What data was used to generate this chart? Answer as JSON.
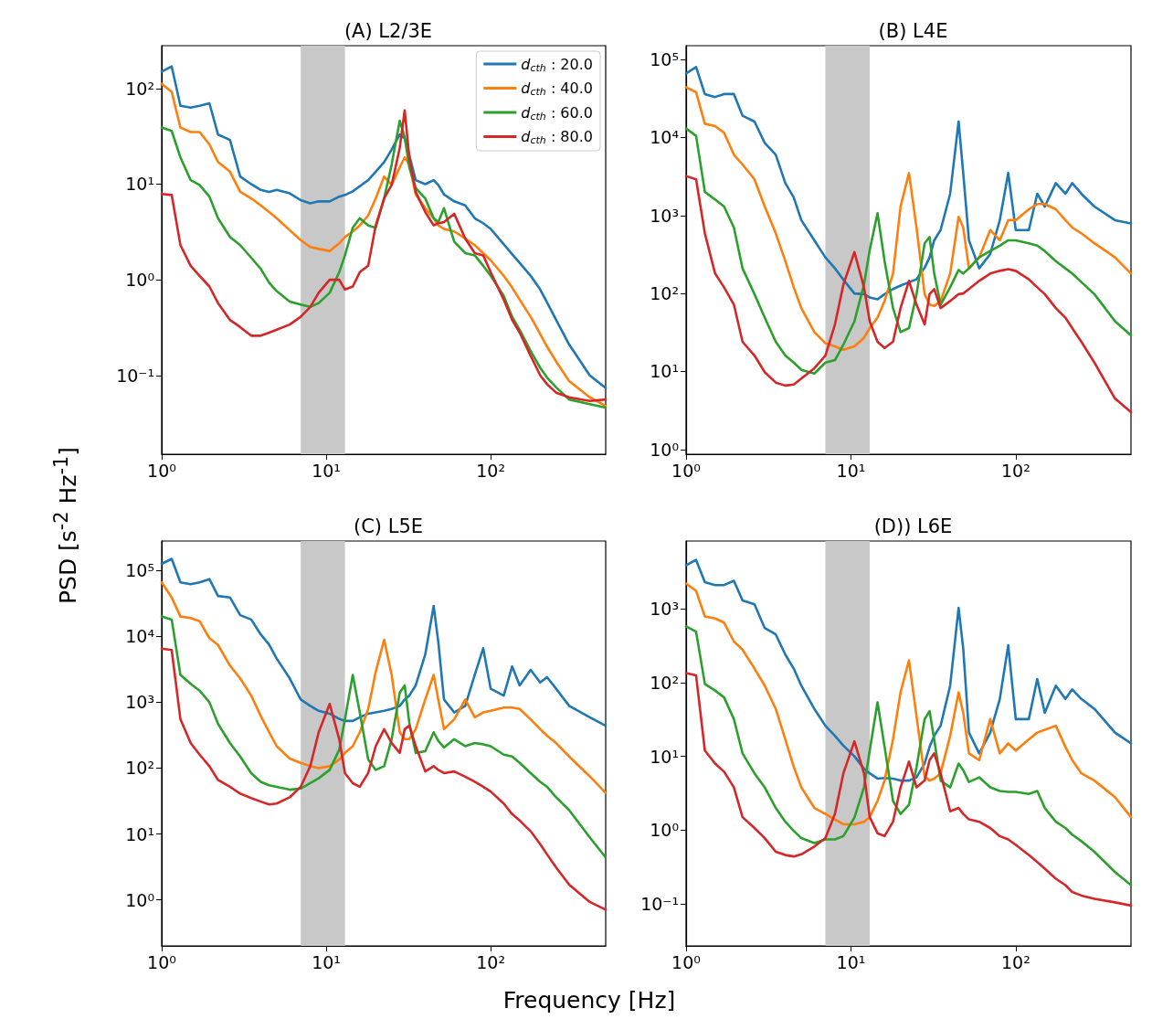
{
  "chart_data": [
    {
      "type": "line",
      "title": "(A) L2/3E",
      "ylabel": "PSD [s$^{-2}$ Hz$^{-1}$]",
      "log": "xy",
      "marker": "none",
      "legend": "top right",
      "x": [
        1,
        1.15,
        1.3,
        1.5,
        1.7,
        1.95,
        2.2,
        2.6,
        3,
        3.5,
        4,
        4.5,
        5,
        6,
        7,
        8,
        9,
        10.5,
        12,
        13,
        14.5,
        16,
        18,
        20,
        22.5,
        25,
        28,
        30,
        32,
        35,
        40,
        45,
        48,
        52,
        60,
        70,
        80,
        90,
        100,
        120,
        135,
        150,
        175,
        200,
        220,
        250,
        300,
        400,
        500
      ],
      "series": [
        {
          "name": "d$_{cth}$ : 20.0",
          "color": "#1f77b4",
          "values": [
            150,
            170,
            66,
            63,
            66,
            70,
            33,
            29,
            12,
            10,
            8.7,
            8.3,
            8.7,
            8,
            6.8,
            6.3,
            6.6,
            6.6,
            7.4,
            7.7,
            8.4,
            9.5,
            11,
            13.5,
            17,
            23,
            33,
            30,
            20,
            11,
            10,
            11,
            9.8,
            7.8,
            6.6,
            6,
            4.4,
            3.9,
            3.4,
            2.35,
            1.85,
            1.5,
            1.1,
            0.79,
            0.58,
            0.38,
            0.21,
            0.1,
            0.074
          ]
        },
        {
          "name": "d$_{cth}$ : 40.0",
          "color": "#ff7f0e",
          "values": [
            112,
            92,
            39,
            35,
            35,
            26,
            17,
            13.5,
            8.3,
            7.1,
            6,
            5.1,
            4.4,
            3.3,
            2.6,
            2.2,
            2.1,
            2.0,
            2.4,
            2.8,
            3.2,
            3.7,
            4.7,
            7.1,
            12,
            9.8,
            15,
            19,
            16,
            7.8,
            5.6,
            4.4,
            3.7,
            3.4,
            3.2,
            2.7,
            2.3,
            1.9,
            1.6,
            1.1,
            0.83,
            0.62,
            0.41,
            0.27,
            0.2,
            0.14,
            0.087,
            0.059,
            0.048
          ]
        },
        {
          "name": "d$_{cth}$ : 60.0",
          "color": "#2ca02c",
          "values": [
            39,
            36,
            19,
            11,
            9.8,
            7.4,
            4.4,
            2.8,
            2.3,
            1.7,
            1.3,
            0.93,
            0.76,
            0.59,
            0.55,
            0.52,
            0.57,
            0.73,
            1.2,
            1.8,
            3.5,
            4.4,
            3.7,
            3.5,
            7.1,
            16,
            46,
            31,
            15,
            9.1,
            7.1,
            4.4,
            4,
            5.6,
            2.5,
            1.9,
            1.8,
            1.4,
            1.1,
            0.68,
            0.41,
            0.3,
            0.18,
            0.12,
            0.095,
            0.075,
            0.056,
            0.05,
            0.046
          ]
        },
        {
          "name": "d$_{cth}$ : 80.0",
          "color": "#d62728",
          "values": [
            7.9,
            7.7,
            2.3,
            1.4,
            1.1,
            0.85,
            0.57,
            0.38,
            0.32,
            0.26,
            0.26,
            0.28,
            0.3,
            0.34,
            0.41,
            0.52,
            0.73,
            1.0,
            1.0,
            0.79,
            0.85,
            1.2,
            1.4,
            3.7,
            7.1,
            9.8,
            24,
            59,
            19,
            8.3,
            5.1,
            3.7,
            3.9,
            4,
            4.9,
            2.7,
            1.9,
            1.8,
            1.2,
            0.62,
            0.38,
            0.28,
            0.16,
            0.1,
            0.081,
            0.066,
            0.059,
            0.054,
            0.056
          ]
        }
      ],
      "xlim": [
        1,
        500
      ],
      "ylim": [
        0.015,
        280
      ],
      "xticks": [
        {
          "value": 1,
          "label": "10⁰"
        },
        {
          "value": 10,
          "label": "10¹"
        },
        {
          "value": 100,
          "label": "10²"
        }
      ],
      "yticks": [
        {
          "value": 0.1,
          "label": "10⁻¹"
        },
        {
          "value": 1,
          "label": "10⁰"
        },
        {
          "value": 10,
          "label": "10¹"
        },
        {
          "value": 100,
          "label": "10²"
        }
      ],
      "bands": [
        {
          "axis": "x",
          "from": 7,
          "to": 13,
          "color": "#c8c8c8"
        }
      ]
    },
    {
      "type": "line",
      "title": "(B) L4E",
      "log": "xy",
      "marker": "none",
      "x": [
        1,
        1.15,
        1.3,
        1.5,
        1.7,
        1.95,
        2.2,
        2.6,
        3,
        3.5,
        4,
        4.5,
        5,
        6,
        7,
        8,
        9,
        10.5,
        12,
        13,
        14.5,
        16,
        18,
        20,
        22.5,
        25,
        28,
        30,
        32,
        35,
        40,
        45,
        48,
        52,
        60,
        70,
        80,
        90,
        100,
        120,
        135,
        150,
        175,
        200,
        220,
        250,
        300,
        400,
        500
      ],
      "series": [
        {
          "color": "#1f77b4",
          "values": [
            66000,
            80000,
            36000,
            33000,
            36000,
            36000,
            19000,
            16000,
            8500,
            6000,
            2600,
            1700,
            870,
            480,
            290,
            210,
            150,
            100,
            98,
            89,
            84,
            98,
            114,
            126,
            139,
            152,
            213,
            290,
            480,
            650,
            1900,
            16000,
            3500,
            480,
            210,
            320,
            870,
            3500,
            650,
            650,
            1900,
            1300,
            2600,
            1900,
            2600,
            1900,
            1300,
            870,
            790
          ]
        },
        {
          "color": "#ff7f0e",
          "values": [
            44000,
            38000,
            15000,
            14000,
            11500,
            6000,
            4500,
            2900,
            1300,
            590,
            260,
            120,
            65,
            32,
            23,
            21,
            19,
            21,
            27,
            36,
            49,
            80,
            180,
            1300,
            3500,
            700,
            98,
            72,
            69,
            80,
            180,
            960,
            700,
            210,
            290,
            650,
            480,
            870,
            870,
            1200,
            1400,
            1400,
            1200,
            870,
            700,
            590,
            440,
            290,
            180
          ]
        },
        {
          "color": "#2ca02c",
          "values": [
            13000,
            10500,
            2000,
            1600,
            1300,
            700,
            210,
            98,
            49,
            24,
            16,
            13,
            10.5,
            9.4,
            13,
            14,
            22,
            44,
            130,
            360,
            1070,
            260,
            65,
            32,
            36,
            98,
            440,
            530,
            180,
            72,
            120,
            200,
            180,
            210,
            290,
            350,
            410,
            480,
            480,
            440,
            410,
            350,
            260,
            210,
            180,
            140,
            98,
            44,
            29
          ]
        },
        {
          "color": "#d62728",
          "values": [
            3200,
            2900,
            590,
            180,
            120,
            72,
            24,
            16,
            9.8,
            7.2,
            6.6,
            6.8,
            8.1,
            11,
            16,
            40,
            130,
            340,
            120,
            44,
            24,
            20,
            24,
            65,
            145,
            72,
            40,
            98,
            114,
            65,
            80,
            98,
            100,
            114,
            145,
            180,
            195,
            205,
            195,
            152,
            120,
            98,
            65,
            49,
            36,
            24,
            13,
            4.5,
            3
          ]
        }
      ],
      "xlim": [
        1,
        500
      ],
      "ylim": [
        0.87,
        150000
      ],
      "xticks": [
        {
          "value": 1,
          "label": "10⁰"
        },
        {
          "value": 10,
          "label": "10¹"
        },
        {
          "value": 100,
          "label": "10²"
        }
      ],
      "yticks": [
        {
          "value": 1,
          "label": "10⁰"
        },
        {
          "value": 10,
          "label": "10¹"
        },
        {
          "value": 100,
          "label": "10²"
        },
        {
          "value": 1000,
          "label": "10³"
        },
        {
          "value": 10000,
          "label": "10⁴"
        },
        {
          "value": 100000,
          "label": "10⁵"
        }
      ],
      "bands": [
        {
          "axis": "x",
          "from": 7,
          "to": 13,
          "color": "#c8c8c8"
        }
      ]
    },
    {
      "type": "line",
      "title": "(C) L5E",
      "xlabel": "Frequency [Hz]",
      "log": "xy",
      "marker": "none",
      "x": [
        1,
        1.15,
        1.3,
        1.5,
        1.7,
        1.95,
        2.2,
        2.6,
        3,
        3.5,
        4,
        4.5,
        5,
        6,
        7,
        8,
        9,
        10.5,
        12,
        13,
        14.5,
        16,
        18,
        20,
        22.5,
        25,
        28,
        30,
        32,
        35,
        40,
        45,
        48,
        52,
        60,
        70,
        80,
        90,
        100,
        120,
        135,
        150,
        175,
        200,
        220,
        250,
        300,
        400,
        500
      ],
      "series": [
        {
          "color": "#1f77b4",
          "values": [
            126000,
            150000,
            66000,
            62000,
            66000,
            74000,
            41000,
            39000,
            21000,
            18000,
            10700,
            7500,
            4600,
            2300,
            1100,
            880,
            740,
            670,
            560,
            520,
            520,
            590,
            670,
            700,
            740,
            790,
            880,
            1100,
            1260,
            1800,
            5300,
            29000,
            8300,
            1100,
            700,
            880,
            2600,
            6600,
            1600,
            1260,
            3500,
            1800,
            3100,
            2000,
            2400,
            1600,
            880,
            590,
            440
          ]
        },
        {
          "color": "#ff7f0e",
          "values": [
            66000,
            39000,
            20000,
            19000,
            17000,
            9400,
            7400,
            3600,
            2300,
            1260,
            620,
            350,
            215,
            140,
            120,
            107,
            100,
            107,
            135,
            170,
            215,
            350,
            790,
            2900,
            8900,
            2600,
            350,
            275,
            275,
            390,
            1100,
            2600,
            1100,
            390,
            550,
            1100,
            590,
            700,
            740,
            830,
            830,
            790,
            550,
            390,
            310,
            240,
            150,
            75,
            42
          ]
        },
        {
          "color": "#2ca02c",
          "values": [
            20000,
            18000,
            2600,
            1900,
            1500,
            1000,
            470,
            240,
            150,
            84,
            62,
            55,
            52,
            47,
            49,
            59,
            70,
            94,
            190,
            550,
            2600,
            700,
            135,
            94,
            107,
            275,
            1400,
            1800,
            490,
            170,
            180,
            350,
            260,
            205,
            275,
            215,
            240,
            230,
            215,
            160,
            150,
            120,
            84,
            62,
            52,
            36,
            23,
            8.9,
            4.4
          ]
        },
        {
          "color": "#d62728",
          "values": [
            6500,
            6200,
            550,
            240,
            160,
            107,
            66,
            52,
            41,
            35,
            31,
            28,
            29,
            36,
            52,
            107,
            350,
            940,
            275,
            84,
            59,
            52,
            84,
            215,
            390,
            240,
            170,
            390,
            440,
            215,
            89,
            107,
            94,
            84,
            89,
            74,
            62,
            52,
            44,
            29,
            20,
            16,
            11,
            7,
            4.9,
            3.1,
            1.7,
            0.93,
            0.71
          ]
        }
      ],
      "xlim": [
        1,
        500
      ],
      "ylim": [
        0.2,
        280000
      ],
      "xticks": [
        {
          "value": 1,
          "label": "10⁰"
        },
        {
          "value": 10,
          "label": "10¹"
        },
        {
          "value": 100,
          "label": "10²"
        }
      ],
      "yticks": [
        {
          "value": 1,
          "label": "10⁰"
        },
        {
          "value": 10,
          "label": "10¹"
        },
        {
          "value": 100,
          "label": "10²"
        },
        {
          "value": 1000,
          "label": "10³"
        },
        {
          "value": 10000,
          "label": "10⁴"
        },
        {
          "value": 100000,
          "label": "10⁵"
        }
      ],
      "bands": [
        {
          "axis": "x",
          "from": 7,
          "to": 13,
          "color": "#c8c8c8"
        }
      ]
    },
    {
      "type": "line",
      "title": "(D)) L6E",
      "log": "xy",
      "marker": "none",
      "x": [
        1,
        1.15,
        1.3,
        1.5,
        1.7,
        1.95,
        2.2,
        2.6,
        3,
        3.5,
        4,
        4.5,
        5,
        6,
        7,
        8,
        9,
        10.5,
        12,
        13,
        14.5,
        16,
        18,
        20,
        22.5,
        25,
        28,
        30,
        32,
        35,
        40,
        45,
        48,
        52,
        60,
        70,
        80,
        90,
        100,
        120,
        135,
        150,
        175,
        200,
        220,
        250,
        300,
        400,
        500
      ],
      "series": [
        {
          "color": "#1f77b4",
          "values": [
            3900,
            4600,
            2300,
            2100,
            2100,
            2400,
            1300,
            1150,
            550,
            450,
            240,
            155,
            91,
            44,
            26,
            19,
            14,
            10,
            6.8,
            5.9,
            5,
            5.1,
            5,
            4.7,
            4.7,
            5.2,
            8,
            13.5,
            19,
            26,
            91,
            1030,
            290,
            21,
            11,
            21,
            60,
            320,
            32,
            32,
            112,
            39,
            91,
            60,
            81,
            60,
            44,
            21,
            15
          ]
        },
        {
          "color": "#ff7f0e",
          "values": [
            2200,
            1750,
            790,
            740,
            650,
            360,
            280,
            155,
            91,
            44,
            17,
            7.2,
            3.8,
            2.0,
            1.66,
            1.4,
            1.2,
            1.2,
            1.3,
            1.5,
            2.5,
            4.7,
            17,
            74,
            200,
            35,
            5.3,
            4.7,
            5,
            5.9,
            19,
            74,
            39,
            11,
            8.9,
            32,
            11,
            15,
            12,
            17,
            21,
            23,
            26,
            13.5,
            8.9,
            5.9,
            4.7,
            2.8,
            1.5
          ]
        },
        {
          "color": "#2ca02c",
          "values": [
            580,
            490,
            96,
            78,
            63,
            32,
            11,
            5.9,
            3.8,
            2.0,
            1.3,
            0.98,
            0.78,
            0.67,
            0.75,
            0.75,
            0.83,
            1.48,
            3.8,
            12,
            54,
            13.5,
            2.5,
            1.66,
            2.2,
            7.2,
            32,
            41,
            17,
            4.7,
            3.8,
            8,
            6.5,
            4.5,
            5.2,
            3.8,
            3.4,
            3.3,
            3.3,
            3.1,
            3.4,
            2.0,
            1.3,
            1.07,
            0.87,
            0.71,
            0.51,
            0.27,
            0.18
          ]
        },
        {
          "color": "#d62728",
          "values": [
            135,
            125,
            12,
            8,
            6.2,
            3.8,
            1.5,
            1.07,
            0.78,
            0.51,
            0.46,
            0.44,
            0.47,
            0.6,
            0.78,
            1.66,
            5.9,
            16,
            5.9,
            1.5,
            0.91,
            0.83,
            1.3,
            3.8,
            8.5,
            3.8,
            4.7,
            8.9,
            11,
            5.9,
            1.8,
            2.0,
            1.66,
            1.4,
            1.3,
            1.07,
            0.83,
            0.75,
            0.63,
            0.46,
            0.37,
            0.3,
            0.22,
            0.18,
            0.145,
            0.13,
            0.117,
            0.105,
            0.095
          ]
        }
      ],
      "xlim": [
        1,
        500
      ],
      "ylim": [
        0.027,
        8300
      ],
      "xticks": [
        {
          "value": 1,
          "label": "10⁰"
        },
        {
          "value": 10,
          "label": "10¹"
        },
        {
          "value": 100,
          "label": "10²"
        }
      ],
      "yticks": [
        {
          "value": 0.1,
          "label": "10⁻¹"
        },
        {
          "value": 1,
          "label": "10⁰"
        },
        {
          "value": 10,
          "label": "10¹"
        },
        {
          "value": 100,
          "label": "10²"
        },
        {
          "value": 1000,
          "label": "10³"
        }
      ],
      "bands": [
        {
          "axis": "x",
          "from": 7,
          "to": 13,
          "color": "#c8c8c8"
        }
      ]
    }
  ]
}
